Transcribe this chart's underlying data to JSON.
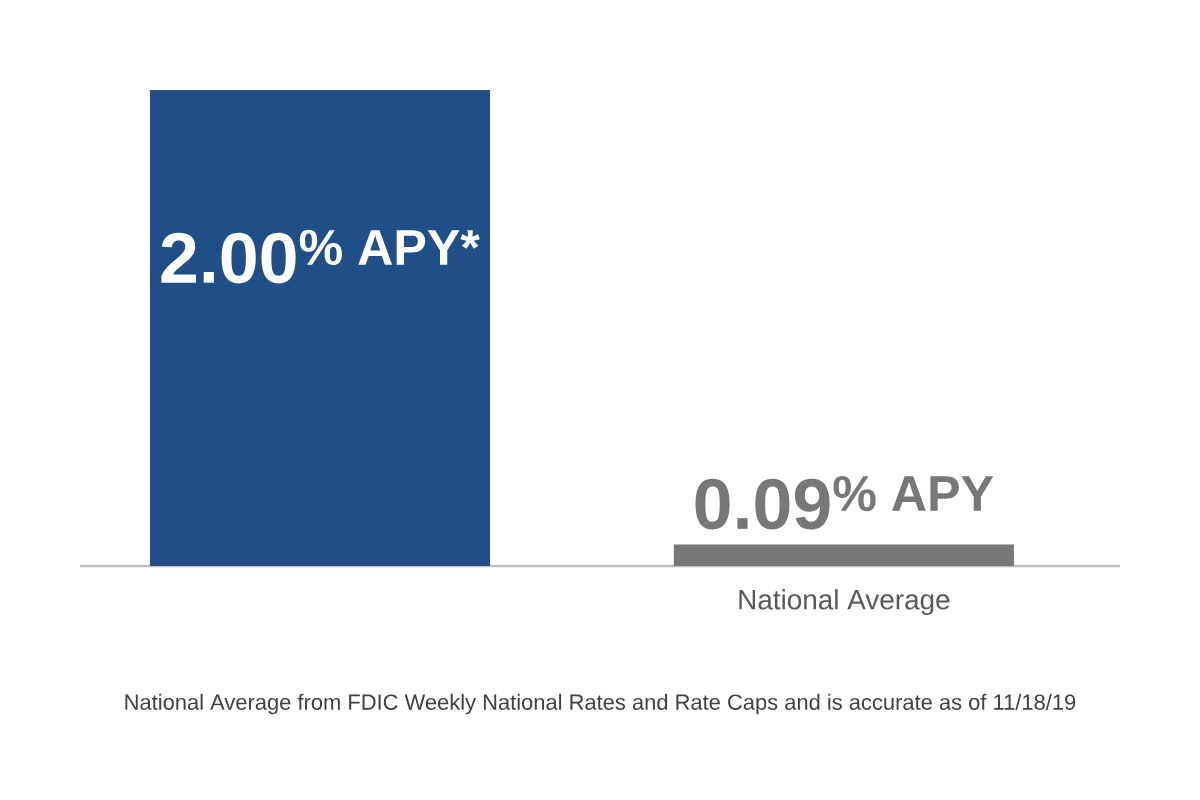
{
  "chart_data": {
    "type": "bar",
    "categories": [
      null,
      "National Average"
    ],
    "values": [
      2.0,
      0.09
    ],
    "colors": [
      "#1f4f86",
      "#777777"
    ],
    "value_labels": [
      "2.00$^{% APY*}$",
      "0.09$^{% APY}$"
    ],
    "ylim": [
      0,
      2
    ],
    "tick_labels": "x",
    "annotations": [
      "National Average from FDIC Weekly National Rates and Rate Caps and is accurate as of 11/18/19"
    ]
  }
}
